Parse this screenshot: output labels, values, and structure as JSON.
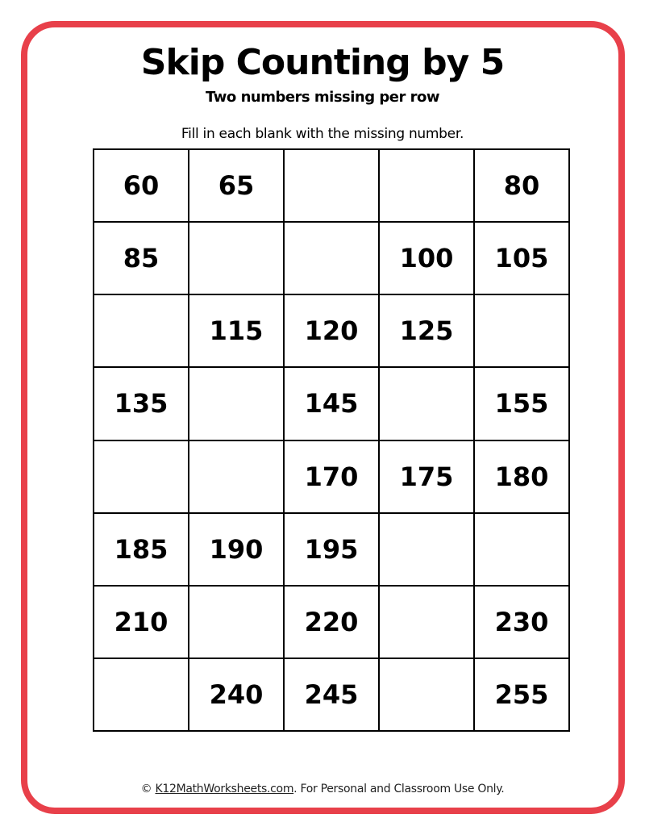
{
  "title": "Skip Counting by 5",
  "subtitle": "Two numbers missing per row",
  "instructions": "Fill in each blank with the missing number.",
  "grid": [
    [
      "60",
      "65",
      "",
      "",
      "80"
    ],
    [
      "85",
      "",
      "",
      "100",
      "105"
    ],
    [
      "",
      "115",
      "120",
      "125",
      ""
    ],
    [
      "135",
      "",
      "145",
      "",
      "155"
    ],
    [
      "",
      "",
      "170",
      "175",
      "180"
    ],
    [
      "185",
      "190",
      "195",
      "",
      ""
    ],
    [
      "210",
      "",
      "220",
      "",
      "230"
    ],
    [
      "",
      "240",
      "245",
      "",
      "255"
    ]
  ],
  "footer": {
    "copyright": "© ",
    "link": "K12MathWorksheets.com",
    "rest": ". For Personal and Classroom Use Only."
  },
  "colors": {
    "border": "#e8404a"
  }
}
